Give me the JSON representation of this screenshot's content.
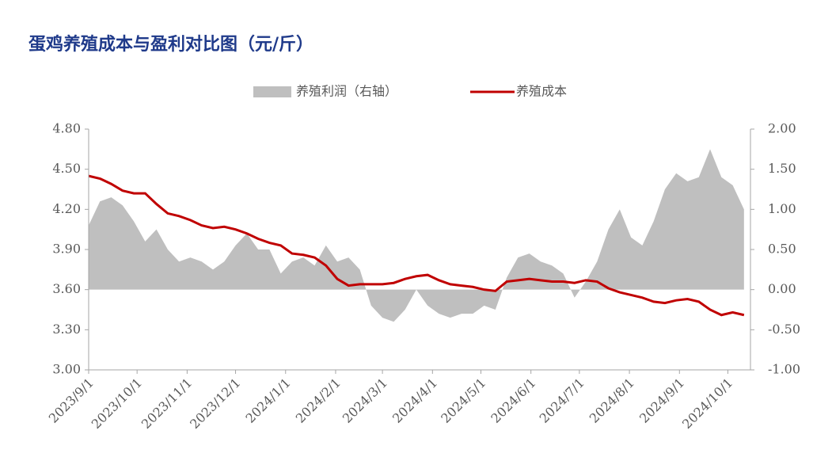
{
  "chart_data": {
    "type": "combo",
    "title": "蛋鸡养殖成本与盈利对比图（元/斤）",
    "x": [
      "2023/9/1",
      "2023/9/8",
      "2023/9/15",
      "2023/9/22",
      "2023/9/29",
      "2023/10/6",
      "2023/10/13",
      "2023/10/20",
      "2023/10/27",
      "2023/11/3",
      "2023/11/10",
      "2023/11/17",
      "2023/11/24",
      "2023/12/1",
      "2023/12/8",
      "2023/12/15",
      "2023/12/22",
      "2023/12/29",
      "2024/1/5",
      "2024/1/12",
      "2024/1/19",
      "2024/1/26",
      "2024/2/2",
      "2024/2/9",
      "2024/2/16",
      "2024/2/23",
      "2024/3/1",
      "2024/3/8",
      "2024/3/15",
      "2024/3/22",
      "2024/3/29",
      "2024/4/5",
      "2024/4/12",
      "2024/4/19",
      "2024/4/26",
      "2024/5/3",
      "2024/5/10",
      "2024/5/17",
      "2024/5/24",
      "2024/5/31",
      "2024/6/7",
      "2024/6/14",
      "2024/6/21",
      "2024/6/28",
      "2024/7/5",
      "2024/7/12",
      "2024/7/19",
      "2024/7/26",
      "2024/8/2",
      "2024/8/9",
      "2024/8/16",
      "2024/8/23",
      "2024/8/30",
      "2024/9/6",
      "2024/9/13",
      "2024/9/20",
      "2024/9/27",
      "2024/10/4",
      "2024/10/11"
    ],
    "series": [
      {
        "name": "养殖利润（右轴）",
        "type": "area",
        "axis": "y2",
        "color": "#bfbfbf",
        "values": [
          0.8,
          1.1,
          1.15,
          1.05,
          0.85,
          0.6,
          0.75,
          0.5,
          0.35,
          0.4,
          0.35,
          0.25,
          0.35,
          0.55,
          0.7,
          0.5,
          0.5,
          0.2,
          0.35,
          0.4,
          0.3,
          0.55,
          0.35,
          0.4,
          0.25,
          -0.2,
          -0.35,
          -0.4,
          -0.25,
          0.0,
          -0.2,
          -0.3,
          -0.35,
          -0.3,
          -0.3,
          -0.2,
          -0.25,
          0.15,
          0.4,
          0.45,
          0.35,
          0.3,
          0.2,
          -0.1,
          0.1,
          0.35,
          0.75,
          1.0,
          0.65,
          0.55,
          0.85,
          1.25,
          1.45,
          1.35,
          1.4,
          1.75,
          1.4,
          1.3,
          1.0
        ]
      },
      {
        "name": "养殖成本",
        "type": "line",
        "color": "#c00000",
        "values": [
          4.45,
          4.43,
          4.39,
          4.34,
          4.32,
          4.32,
          4.24,
          4.17,
          4.15,
          4.12,
          4.08,
          4.06,
          4.07,
          4.05,
          4.02,
          3.98,
          3.95,
          3.93,
          3.87,
          3.86,
          3.84,
          3.78,
          3.68,
          3.63,
          3.64,
          3.64,
          3.64,
          3.65,
          3.68,
          3.7,
          3.71,
          3.67,
          3.64,
          3.63,
          3.62,
          3.6,
          3.59,
          3.66,
          3.67,
          3.68,
          3.67,
          3.66,
          3.66,
          3.65,
          3.67,
          3.66,
          3.61,
          3.58,
          3.56,
          3.54,
          3.51,
          3.5,
          3.52,
          3.53,
          3.51,
          3.45,
          3.41,
          3.43,
          3.41
        ]
      }
    ],
    "xlim": [
      "2023/9/1",
      "2024/10/15"
    ],
    "xticks": [
      "2023/9/1",
      "2023/10/1",
      "2023/11/1",
      "2023/12/1",
      "2024/1/1",
      "2024/2/1",
      "2024/3/1",
      "2024/4/1",
      "2024/5/1",
      "2024/6/1",
      "2024/7/1",
      "2024/8/1",
      "2024/9/1",
      "2024/10/1"
    ],
    "ylim": [
      3.0,
      4.8
    ],
    "yticks": [
      {
        "value": 3.0,
        "label": "3.00"
      },
      {
        "value": 3.3,
        "label": "3.30"
      },
      {
        "value": 3.6,
        "label": "3.60"
      },
      {
        "value": 3.9,
        "label": "3.90"
      },
      {
        "value": 4.2,
        "label": "4.20"
      },
      {
        "value": 4.5,
        "label": "4.50"
      },
      {
        "value": 4.8,
        "label": "4.80"
      }
    ],
    "y2lim": [
      -1.0,
      2.0
    ],
    "y2ticks": [
      {
        "value": -1.0,
        "label": "-1.00"
      },
      {
        "value": -0.5,
        "label": "-0.50"
      },
      {
        "value": 0.0,
        "label": "0.00"
      },
      {
        "value": 0.5,
        "label": "0.50"
      },
      {
        "value": 1.0,
        "label": "1.00"
      },
      {
        "value": 1.5,
        "label": "1.50"
      },
      {
        "value": 2.0,
        "label": "2.00"
      }
    ],
    "legend": "top"
  }
}
